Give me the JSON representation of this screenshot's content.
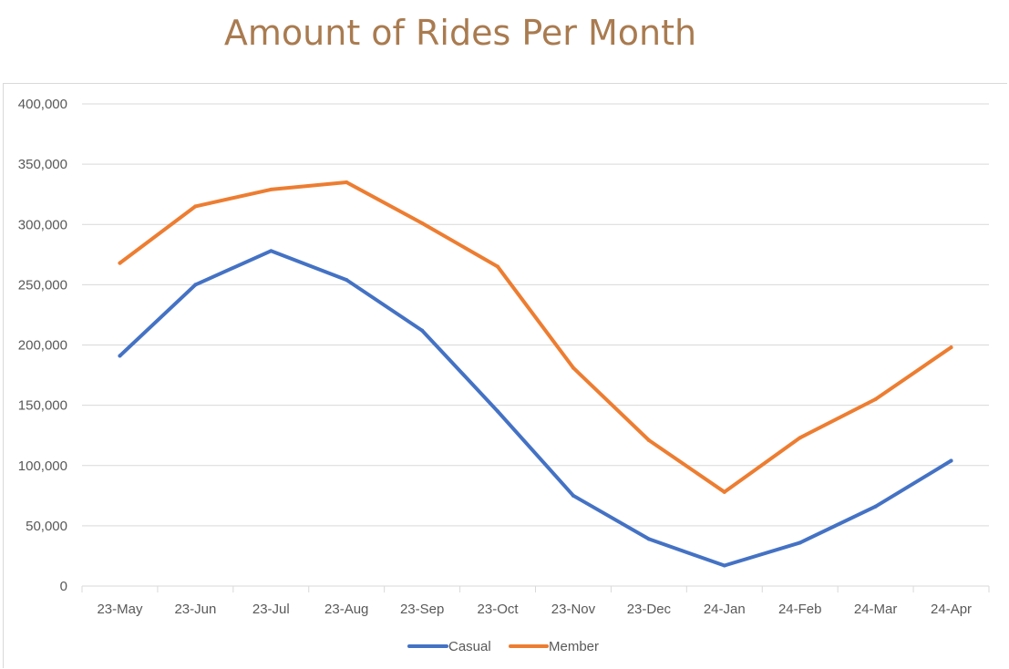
{
  "chart_data": {
    "type": "line",
    "title": "Amount of Rides Per Month",
    "xlabel": "",
    "ylabel": "",
    "categories": [
      "23-May",
      "23-Jun",
      "23-Jul",
      "23-Aug",
      "23-Sep",
      "23-Oct",
      "23-Nov",
      "23-Dec",
      "24-Jan",
      "24-Feb",
      "24-Mar",
      "24-Apr"
    ],
    "series": [
      {
        "name": "Casual",
        "color": "#4472c4",
        "values": [
          191000,
          250000,
          278000,
          254000,
          212000,
          145000,
          75000,
          39000,
          17000,
          36000,
          66000,
          104000
        ]
      },
      {
        "name": "Member",
        "color": "#ed7d31",
        "values": [
          268000,
          315000,
          329000,
          335000,
          301000,
          265000,
          181000,
          121000,
          78000,
          123000,
          155000,
          198000
        ]
      }
    ],
    "ylim": [
      0,
      400000
    ],
    "yticks": [
      0,
      50000,
      100000,
      150000,
      200000,
      250000,
      300000,
      350000,
      400000
    ],
    "ytick_labels": [
      "0",
      "50,000",
      "100,000",
      "150,000",
      "200,000",
      "250,000",
      "300,000",
      "350,000",
      "400,000"
    ],
    "grid": true,
    "legend": "bottom",
    "colors": {
      "title": "#a97b50",
      "grid": "#d9d9d9",
      "text": "#595959"
    }
  }
}
